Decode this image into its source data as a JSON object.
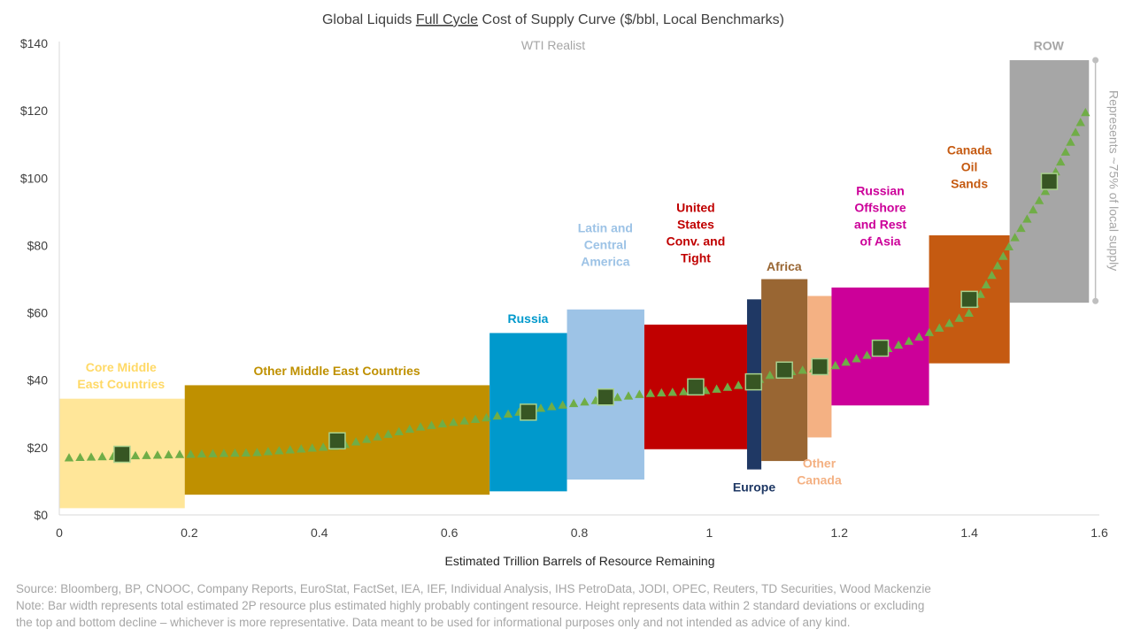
{
  "chart_data": {
    "type": "bar",
    "title_parts": [
      "Global Liquids ",
      "Full Cycle",
      " Cost of Supply Curve ($/bbl, Local Benchmarks)"
    ],
    "xlabel": "Estimated Trillion Barrels of Resource Remaining",
    "ylabel": "",
    "xlim": [
      0,
      1.6
    ],
    "ylim": [
      0,
      140
    ],
    "x_ticks": [
      0,
      0.2,
      0.4,
      0.6,
      0.8,
      1,
      1.2,
      1.4,
      1.6
    ],
    "x_tick_labels": [
      "0",
      "0.2",
      "0.4",
      "0.6",
      "0.8",
      "1",
      "1.2",
      "1.4",
      "1.6"
    ],
    "y_ticks": [
      0,
      20,
      40,
      60,
      80,
      100,
      120,
      140
    ],
    "y_tick_labels": [
      "$0",
      "$20",
      "$40",
      "$60",
      "$80",
      "$100",
      "$120",
      "$140"
    ],
    "legend": "none",
    "grid": false,
    "segments": [
      {
        "id": "core-middle-east",
        "label_lines": [
          "Core Middle",
          "East Countries"
        ],
        "x0": 0.0,
        "x1": 0.193,
        "low": 2,
        "high": 34.5,
        "color": "#ffe699",
        "label_color": "#ffd966",
        "marker": 18,
        "label_pos": [
          0.095,
          37.5
        ]
      },
      {
        "id": "other-middle-east",
        "label_lines": [
          "Other Middle East Countries"
        ],
        "x0": 0.193,
        "x1": 0.662,
        "low": 6,
        "high": 38.5,
        "color": "#bf9000",
        "label_color": "#bf9000",
        "marker": 22,
        "label_pos": [
          0.427,
          41.5
        ]
      },
      {
        "id": "russia",
        "label_lines": [
          "Russia"
        ],
        "x0": 0.662,
        "x1": 0.781,
        "low": 7,
        "high": 54,
        "color": "#0099cc",
        "label_color": "#0099cc",
        "marker": 30.5,
        "label_pos": [
          0.721,
          57
        ]
      },
      {
        "id": "latin-central-america",
        "label_lines": [
          "Latin and",
          "Central",
          "America"
        ],
        "x0": 0.781,
        "x1": 0.9,
        "low": 10.5,
        "high": 61,
        "color": "#9dc3e6",
        "label_color": "#9dc3e6",
        "marker": 35,
        "label_pos": [
          0.84,
          74
        ]
      },
      {
        "id": "united-states",
        "label_lines": [
          "United",
          "States",
          "Conv. and",
          "Tight"
        ],
        "x0": 0.9,
        "x1": 1.058,
        "low": 19.5,
        "high": 56.5,
        "color": "#c00000",
        "label_color": "#c00000",
        "marker": 38,
        "label_pos": [
          0.979,
          75
        ]
      },
      {
        "id": "europe",
        "label_lines": [
          "Europe"
        ],
        "x0": 1.058,
        "x1": 1.08,
        "low": 13.5,
        "high": 64,
        "color": "#1f3864",
        "label_color": "#1f3864",
        "marker": 39.5,
        "label_pos": [
          1.069,
          7
        ],
        "marker_x": 1.068
      },
      {
        "id": "africa",
        "label_lines": [
          "Africa"
        ],
        "x0": 1.08,
        "x1": 1.151,
        "low": 16,
        "high": 70,
        "color": "#996633",
        "label_color": "#996633",
        "marker": 43,
        "label_pos": [
          1.115,
          72.5
        ]
      },
      {
        "id": "other-canada",
        "label_lines": [
          "Other",
          "Canada"
        ],
        "x0": 1.151,
        "x1": 1.188,
        "low": 23,
        "high": 65,
        "color": "#f4b183",
        "label_color": "#f4b183",
        "marker": 44,
        "label_pos": [
          1.169,
          9
        ],
        "marker_x": 1.17
      },
      {
        "id": "russian-offshore-asia",
        "label_lines": [
          "Russian",
          "Offshore",
          "and Rest",
          "of Asia"
        ],
        "x0": 1.188,
        "x1": 1.338,
        "low": 32.5,
        "high": 67.5,
        "color": "#cc0099",
        "label_color": "#cc0099",
        "marker": 49.5,
        "label_pos": [
          1.263,
          80
        ]
      },
      {
        "id": "canada-oil-sands",
        "label_lines": [
          "Canada",
          "Oil",
          "Sands"
        ],
        "x0": 1.338,
        "x1": 1.462,
        "low": 45,
        "high": 83,
        "color": "#c55a11",
        "label_color": "#c55a11",
        "marker": 64,
        "label_pos": [
          1.4,
          97
        ]
      },
      {
        "id": "row",
        "label_lines": [
          "ROW"
        ],
        "x0": 1.462,
        "x1": 1.584,
        "low": 63,
        "high": 135,
        "color": "#a6a6a6",
        "label_color": "#a6a6a6",
        "marker": 99,
        "label_pos": [
          1.522,
          138
        ]
      }
    ],
    "supply_curve": {
      "marker": "triangle",
      "color": "#70ad47",
      "x": [
        0.015,
        0.1,
        0.193,
        0.3,
        0.43,
        0.55,
        0.662,
        0.75,
        0.9,
        1.0,
        1.06,
        1.1,
        1.188,
        1.3,
        1.36,
        1.4,
        1.462,
        1.52,
        1.58
      ],
      "y": [
        17,
        17.5,
        18,
        18.5,
        20.5,
        26,
        29,
        32,
        36,
        37,
        39,
        42,
        44,
        51,
        56,
        60,
        80,
        97,
        120
      ]
    },
    "wti_label": "WTI Realist",
    "bracket": {
      "low": 63.5,
      "high": 135,
      "x": 1.594,
      "label": "Represents ~75% of local supply"
    }
  },
  "footer": {
    "source": "Source: Bloomberg, BP, CNOOC, Company Reports, EuroStat, FactSet, IEA, IEF, Individual Analysis, IHS PetroData, JODI, OPEC, Reuters, TD Securities, Wood Mackenzie",
    "note_line1": "Note: Bar width represents total estimated 2P resource plus estimated highly probably contingent resource. Height represents data within 2 standard deviations or excluding",
    "note_line2": "the top and bottom decline – whichever is more representative. Data meant to be used for informational purposes only and not intended as advice of any kind."
  }
}
